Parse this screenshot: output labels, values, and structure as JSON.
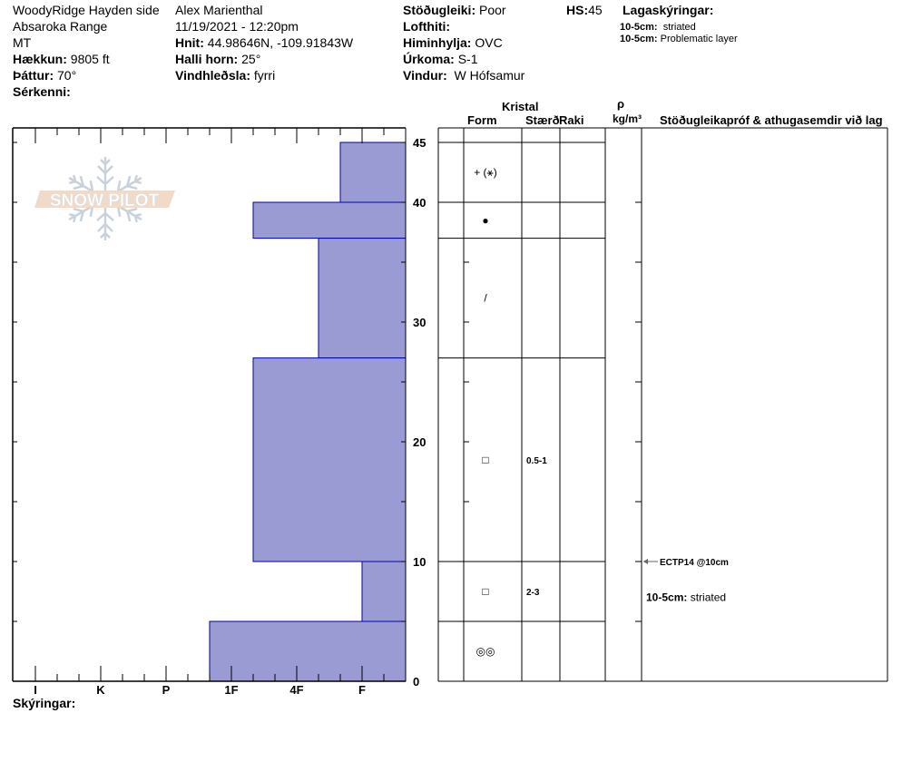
{
  "header": {
    "location": "WoodyRidge Hayden side",
    "range": "Absaroka Range",
    "state": "MT",
    "elevation_label": "Hækkun:",
    "elevation": "9805 ft",
    "aspect_label": "Þáttur:",
    "aspect": "70°",
    "features_label": "Sérkenni:",
    "observer": "Alex Marienthal",
    "datetime": "11/19/2021 - 12:20pm",
    "coords_label": "Hnit:",
    "coords": "44.98646N, -109.91843W",
    "slope_label": "Halli horn:",
    "slope": "25°",
    "wind_loading_label": "Vindhleðsla:",
    "wind_loading": "fyrri",
    "stability_label": "Stöðugleiki:",
    "stability": "Poor",
    "air_temp_label": "Lofthiti:",
    "sky_label": "Himinhylja:",
    "sky": "OVC",
    "precip_label": "Úrkoma:",
    "precip": "S-1",
    "wind_label": "Vindur:",
    "wind": "W Hófsamur",
    "hs_label": "HS:",
    "hs": "45",
    "layer_notes_title": "Lagaskýringar:",
    "layer_notes": [
      {
        "range": "10-5cm:",
        "text": "striated"
      },
      {
        "range": "10-5cm:",
        "text": "Problematic layer"
      }
    ]
  },
  "table_headers": {
    "crystal": "Kristal",
    "form": "Form",
    "size": "Stærð",
    "moisture": "Raki",
    "rho": "ρ",
    "density_unit": "kg/m³",
    "comments": "Stöðugleikapróf & athugasemdir við lag"
  },
  "footer": {
    "legend_label": "Skýringar:"
  },
  "logo": {
    "text": "SNOW PILOT"
  },
  "chart_data": {
    "type": "bar",
    "orientation": "horizontal",
    "y_axis": {
      "range": [
        0,
        45
      ],
      "ticks": [
        0,
        10,
        20,
        30,
        40,
        45
      ],
      "unit": "cm"
    },
    "x_axis": {
      "ticks": [
        "I",
        "K",
        "P",
        "1F",
        "4F",
        "F"
      ]
    },
    "colors": {
      "fill": "#9b9bd4",
      "stroke": "#0000aa"
    },
    "layers": [
      {
        "top": 45,
        "bottom": 40,
        "hardness": "F+",
        "form": "+ (⚹)",
        "size": ""
      },
      {
        "top": 40,
        "bottom": 37,
        "hardness": "1F-",
        "form": "●",
        "size": ""
      },
      {
        "top": 37,
        "bottom": 27,
        "hardness": "4F-",
        "form": "/",
        "size": ""
      },
      {
        "top": 27,
        "bottom": 10,
        "hardness": "1F-",
        "form": "□",
        "size": "0.5-1"
      },
      {
        "top": 10,
        "bottom": 5,
        "hardness": "F",
        "form": "□",
        "size": "2-3"
      },
      {
        "top": 5,
        "bottom": 0,
        "hardness": "1F+",
        "form": "◎◎",
        "size": ""
      }
    ],
    "tests": [
      {
        "depth": 10,
        "label": "ECTP14 @10cm"
      }
    ],
    "comments": [
      {
        "range": "10-5cm:",
        "text": "striated"
      }
    ]
  }
}
